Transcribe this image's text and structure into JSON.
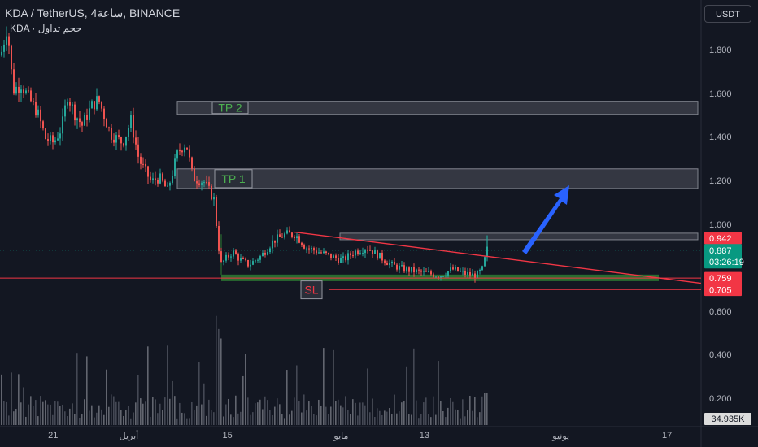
{
  "header": {
    "title": "KDA / TetherUS, 4ساعة, BINANCE",
    "volume_label": "KDA · حجم تداول"
  },
  "currency_button": "USDT",
  "colors": {
    "background": "#131722",
    "up": "#26a69a",
    "down": "#ef5350",
    "zone_fill": "#3a3d48",
    "zone_border": "#9598a1",
    "green_zone": "#2e7d32",
    "arrow": "#2962ff",
    "trendline": "#f23645"
  },
  "chart_data": {
    "type": "candlestick",
    "symbol": "KDA/USDT",
    "interval": "4h",
    "exchange": "BINANCE",
    "ylim": [
      0,
      2.0
    ],
    "y_ticks": [
      "1.800",
      "1.600",
      "1.400",
      "1.200",
      "1.000",
      "0.600",
      "0.400",
      "0.200"
    ],
    "x_ticks": [
      {
        "label": "21",
        "frac": 0.07
      },
      {
        "label": "أبريل",
        "frac": 0.17
      },
      {
        "label": "15",
        "frac": 0.3
      },
      {
        "label": "مايو",
        "frac": 0.45
      },
      {
        "label": "13",
        "frac": 0.56
      },
      {
        "label": "يونيو",
        "frac": 0.74
      },
      {
        "label": "17",
        "frac": 0.88
      }
    ],
    "price_path": [
      [
        0,
        1.78
      ],
      [
        8,
        1.92
      ],
      [
        15,
        1.62
      ],
      [
        25,
        1.65
      ],
      [
        35,
        1.58
      ],
      [
        45,
        1.52
      ],
      [
        55,
        1.4
      ],
      [
        65,
        1.38
      ],
      [
        75,
        1.45
      ],
      [
        82,
        1.6
      ],
      [
        90,
        1.52
      ],
      [
        100,
        1.46
      ],
      [
        112,
        1.55
      ],
      [
        120,
        1.58
      ],
      [
        135,
        1.42
      ],
      [
        150,
        1.38
      ],
      [
        160,
        1.48
      ],
      [
        170,
        1.3
      ],
      [
        185,
        1.2
      ],
      [
        195,
        1.22
      ],
      [
        205,
        1.16
      ],
      [
        218,
        1.34
      ],
      [
        228,
        1.38
      ],
      [
        236,
        1.22
      ],
      [
        250,
        1.2
      ],
      [
        262,
        1.12
      ],
      [
        270,
        0.82
      ],
      [
        285,
        0.88
      ],
      [
        295,
        0.84
      ],
      [
        305,
        0.82
      ],
      [
        320,
        0.86
      ],
      [
        335,
        0.93
      ],
      [
        350,
        0.96
      ],
      [
        362,
        0.96
      ],
      [
        375,
        0.9
      ],
      [
        390,
        0.88
      ],
      [
        405,
        0.86
      ],
      [
        420,
        0.84
      ],
      [
        435,
        0.88
      ],
      [
        450,
        0.9
      ],
      [
        465,
        0.86
      ],
      [
        480,
        0.82
      ],
      [
        495,
        0.8
      ],
      [
        510,
        0.79
      ],
      [
        525,
        0.78
      ],
      [
        540,
        0.77
      ],
      [
        555,
        0.8
      ],
      [
        570,
        0.78
      ],
      [
        585,
        0.77
      ],
      [
        592,
        0.8
      ],
      [
        598,
        0.89
      ]
    ],
    "zones": [
      {
        "label": "TP 2",
        "top": 1.57,
        "bottom": 1.51
      },
      {
        "label": "TP 1",
        "top": 1.26,
        "bottom": 1.17
      },
      {
        "label": "",
        "top": 0.965,
        "bottom": 0.935
      }
    ],
    "support_zone": {
      "top": 0.775,
      "bottom": 0.745
    },
    "stop_loss": {
      "label": "SL",
      "price": 0.705
    },
    "horizontal_line": 0.759,
    "trendline": {
      "from": 0.97,
      "to": 0.735
    },
    "price_tags": [
      {
        "value": "0.942",
        "price": 0.942,
        "color": "#f23645"
      },
      {
        "value": "0.887",
        "price": 0.887,
        "color": "#089981",
        "sub": "03:26:19"
      },
      {
        "value": "0.759",
        "price": 0.759,
        "color": "#f23645"
      },
      {
        "value": "0.705",
        "price": 0.705,
        "color": "#f23645"
      }
    ],
    "volume_label": "34.935K"
  }
}
